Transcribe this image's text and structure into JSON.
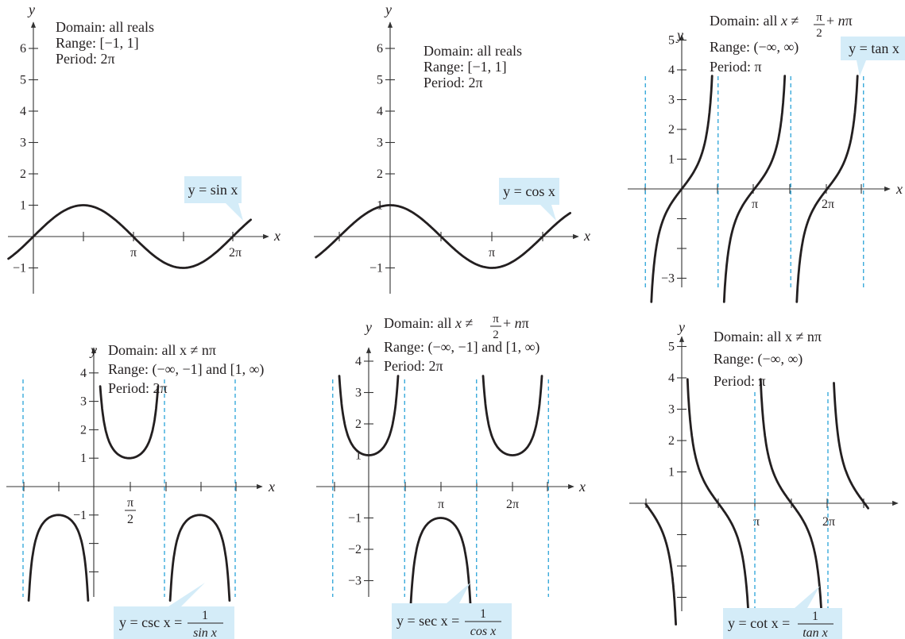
{
  "colors": {
    "curve": "#231f20",
    "asymptote": "#2aa3d8",
    "callout": "#d4ecf8"
  },
  "chart_data": [
    {
      "id": "sin",
      "type": "line",
      "function": "sin",
      "period_label": "2π",
      "info": {
        "domain": "Domain:  all reals",
        "range": "Range:  [−1, 1]",
        "period": "Period:  2π"
      },
      "label": "y = sin x",
      "x_ticks": [
        "π",
        "2π"
      ],
      "y_ticks": [
        "6",
        "5",
        "4",
        "3",
        "2",
        "1",
        "−1"
      ],
      "xlabel": "x",
      "ylabel": "y",
      "xlim": [
        -1.5,
        6.8
      ],
      "ylim": [
        -1.5,
        6.5
      ],
      "series": [
        {
          "x": [
            -1.57,
            -0.79,
            0,
            0.79,
            1.57,
            2.36,
            3.14,
            3.93,
            4.71,
            5.5,
            6.28,
            6.8
          ],
          "values": [
            -1,
            -0.71,
            0,
            0.71,
            1,
            0.71,
            0,
            -0.71,
            -1,
            -0.71,
            0,
            0.49
          ]
        }
      ]
    },
    {
      "id": "cos",
      "type": "line",
      "function": "cos",
      "period_label": "2π",
      "info": {
        "domain": "Domain:  all reals",
        "range": "Range:  [−1, 1]",
        "period": "Period:  2π"
      },
      "label": "y = cos x",
      "x_ticks": [
        "π"
      ],
      "y_ticks": [
        "6",
        "5",
        "4",
        "3",
        "2",
        "1",
        "−1"
      ],
      "xlabel": "x",
      "ylabel": "y",
      "xlim": [
        -3.2,
        4.2
      ],
      "ylim": [
        -1.5,
        6.5
      ],
      "series": [
        {
          "x": [
            -3.14,
            -1.57,
            0,
            1.57,
            3.14,
            4.2
          ],
          "values": [
            -1,
            0,
            1,
            0,
            -1,
            -0.49
          ]
        }
      ]
    },
    {
      "id": "tan",
      "type": "line",
      "function": "tan",
      "info": {
        "domain_prefix": "Domain:  all ",
        "domain_var": "x",
        "domain_neq": " ≠ ",
        "domain_num": "π",
        "domain_den": "2",
        "domain_suffix": " + ",
        "domain_n": "n",
        "domain_pi": "π",
        "range": "Range:  (−∞, ∞)",
        "period": "Period:  π"
      },
      "label": "y = tan x",
      "x_ticks": [
        "π",
        "2π"
      ],
      "y_ticks": [
        "5",
        "4",
        "3",
        "2",
        "1",
        "−3"
      ],
      "xlabel": "x",
      "ylabel": "y",
      "xlim": [
        -1.8,
        8.0
      ],
      "ylim": [
        -4.0,
        5.5
      ],
      "asymptotes": [
        -1.57,
        1.57,
        4.71,
        7.85
      ],
      "series": [
        {
          "x": [
            -1.33,
            -0.79,
            0,
            0.79,
            1.33
          ],
          "values": [
            -4,
            -1,
            0,
            1,
            4
          ]
        }
      ]
    },
    {
      "id": "csc",
      "type": "line",
      "function": "csc",
      "info": {
        "domain": "Domain:  all x ≠ nπ",
        "range": "Range:  (−∞, −1] and [1, ∞)",
        "period": "Period:  2π"
      },
      "label_prefix": "y = csc x = ",
      "label_num": "1",
      "label_den": "sin x",
      "x_ticks_num": "π",
      "x_ticks_den": "2",
      "y_ticks": [
        "4",
        "3",
        "2",
        "1",
        "−1"
      ],
      "xlabel": "x",
      "ylabel": "y",
      "xlim": [
        -3.6,
        7.0
      ],
      "ylim": [
        -4.3,
        4.5
      ],
      "asymptotes": [
        -3.14,
        3.14,
        6.28
      ],
      "series": [
        {
          "x": [
            0.27,
            1.57,
            2.87
          ],
          "values": [
            3.6,
            1,
            3.6
          ]
        }
      ]
    },
    {
      "id": "sec",
      "type": "line",
      "function": "sec",
      "info": {
        "domain_prefix": "Domain:  all ",
        "domain_var": "x",
        "domain_neq": " ≠ ",
        "domain_num": "π",
        "domain_den": "2",
        "domain_suffix": " + ",
        "domain_n": "n",
        "domain_pi": "π",
        "range": "Range:  (−∞, −1] and [1, ∞)",
        "period": "Period:  2π"
      },
      "label_prefix": "y = sec x = ",
      "label_num": "1",
      "label_den": "cos x",
      "x_ticks": [
        "π",
        "2π"
      ],
      "y_ticks": [
        "4",
        "3",
        "2",
        "1",
        "−1",
        "−2",
        "−3"
      ],
      "xlabel": "x",
      "ylabel": "y",
      "xlim": [
        -2.0,
        8.5
      ],
      "ylim": [
        -4.3,
        4.5
      ],
      "asymptotes": [
        -1.57,
        1.57,
        4.71,
        7.85
      ],
      "series": [
        {
          "x": [
            -1.29,
            0,
            1.29
          ],
          "values": [
            3.6,
            1,
            3.6
          ]
        }
      ]
    },
    {
      "id": "cot",
      "type": "line",
      "function": "cot",
      "info": {
        "domain": "Domain:  all x ≠ nπ",
        "range": "Range:  (−∞, ∞)",
        "period": "Period:  π"
      },
      "label_prefix": "y = cot x = ",
      "label_num": "1",
      "label_den": "tan x",
      "x_ticks": [
        "π",
        "2π"
      ],
      "y_ticks": [
        "5",
        "4",
        "3",
        "2",
        "1"
      ],
      "xlabel": "x",
      "ylabel": "y",
      "xlim": [
        -1.0,
        9.5
      ],
      "ylim": [
        -4.0,
        5.5
      ],
      "asymptotes": [
        3.14,
        6.28
      ],
      "series": [
        {
          "x": [
            0.24,
            0.79,
            1.57,
            2.36,
            2.9
          ],
          "values": [
            4,
            1,
            0,
            -1,
            -4
          ]
        }
      ]
    }
  ]
}
